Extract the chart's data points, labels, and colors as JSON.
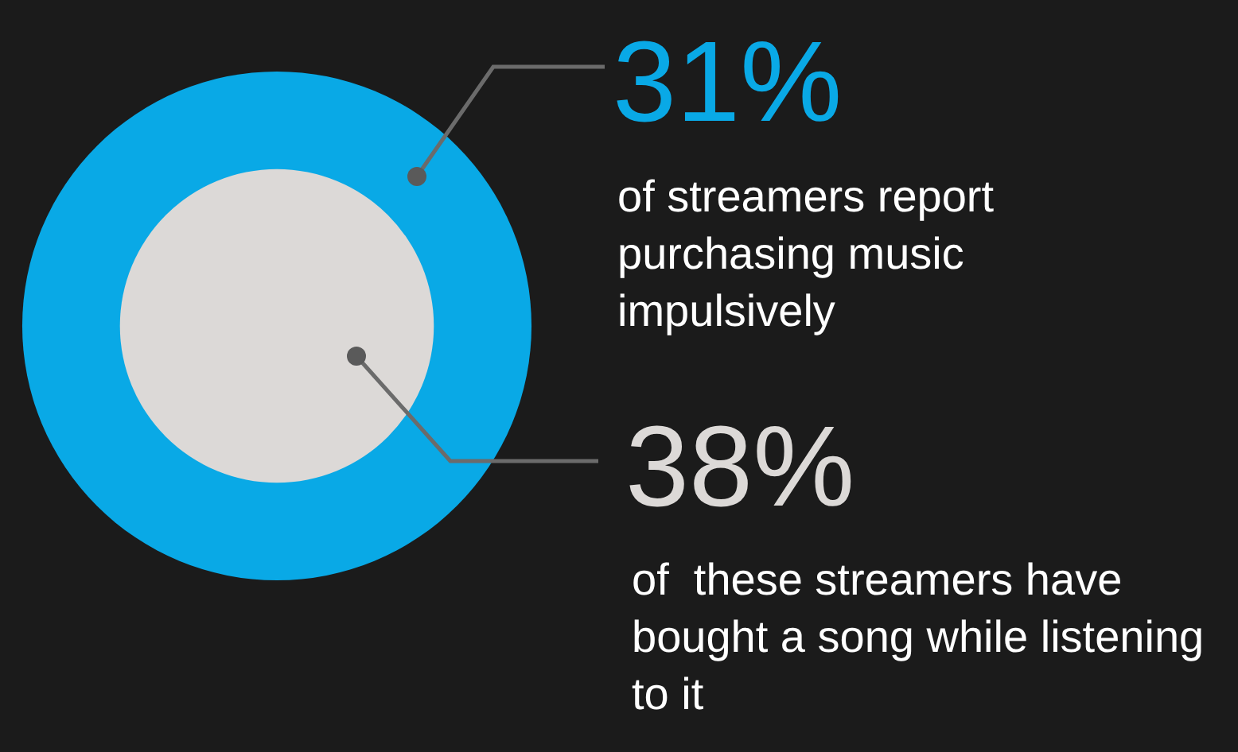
{
  "chart_data": {
    "type": "other",
    "categories": [
      "of streamers report purchasing music impulsively",
      "of  these streamers have bought a song while listening to it"
    ],
    "values": [
      31,
      38
    ],
    "value_labels": [
      "31%",
      "38%"
    ],
    "colors": [
      "#09a9e6",
      "#dcd9d7"
    ]
  }
}
